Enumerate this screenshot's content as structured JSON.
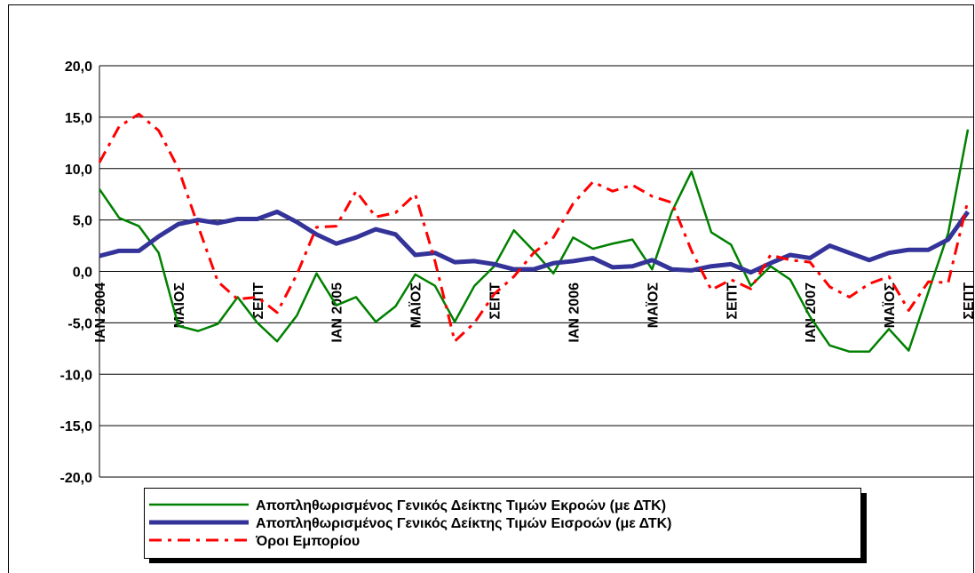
{
  "chart_data": {
    "type": "line",
    "categories": [
      "ΙΑΝ 2004",
      null,
      null,
      null,
      "ΜΑΪΟΣ",
      null,
      null,
      null,
      "ΣΕΠΤ",
      null,
      null,
      null,
      "ΙΑΝ 2005",
      null,
      null,
      null,
      "ΜΑΪΟΣ",
      null,
      null,
      null,
      "ΣΕΠΤ",
      null,
      null,
      null,
      "ΙΑΝ 2006",
      null,
      null,
      null,
      "ΜΑΪΟΣ",
      null,
      null,
      null,
      "ΣΕΠΤ",
      null,
      null,
      null,
      "ΙΑΝ 2007",
      null,
      null,
      null,
      "ΜΑΪΟΣ",
      null,
      null,
      null,
      "ΣΕΠΤ"
    ],
    "series": [
      {
        "name": "Αποπληθωρισμένος Γενικός Δείκτης Τιμών Εκροών (με ΔΤΚ)",
        "color": "#008000",
        "values": [
          8.0,
          5.2,
          4.4,
          1.8,
          -5.3,
          -5.8,
          -5.1,
          -2.5,
          -5.0,
          -6.8,
          -4.3,
          -0.2,
          -3.3,
          -2.5,
          -4.9,
          -3.4,
          -0.3,
          -1.4,
          -4.9,
          -1.4,
          0.5,
          4.0,
          2.0,
          -0.2,
          3.3,
          2.2,
          2.7,
          3.1,
          0.2,
          5.8,
          9.7,
          3.8,
          2.6,
          -1.4,
          0.5,
          -0.8,
          -4.4,
          -7.2,
          -7.8,
          -7.8,
          -5.6,
          -7.7,
          -2.0,
          3.7,
          13.8
        ]
      },
      {
        "name": "Αποπληθωρισμένος Γενικός Δείκτης Τιμών Εισροών (με ΔΤΚ)",
        "color": "#333399",
        "values": [
          1.5,
          2.0,
          2.0,
          3.4,
          4.6,
          5.0,
          4.7,
          5.1,
          5.1,
          5.8,
          4.8,
          3.6,
          2.7,
          3.3,
          4.1,
          3.6,
          1.6,
          1.8,
          0.9,
          1.0,
          0.7,
          0.2,
          0.2,
          0.8,
          1.0,
          1.3,
          0.4,
          0.5,
          1.1,
          0.2,
          0.1,
          0.5,
          0.7,
          -0.1,
          0.8,
          1.6,
          1.3,
          2.5,
          1.8,
          1.1,
          1.8,
          2.1,
          2.1,
          3.1,
          5.8
        ]
      },
      {
        "name": "Όροι Εμπορίου",
        "color": "#ff0000",
        "values": [
          10.6,
          14.1,
          15.3,
          13.7,
          10.0,
          4.4,
          -1.0,
          -2.7,
          -2.5,
          -4.0,
          -0.3,
          4.3,
          4.4,
          7.8,
          5.3,
          5.7,
          7.5,
          1.0,
          -6.8,
          -5.0,
          -2.2,
          -0.5,
          1.8,
          3.3,
          6.6,
          8.7,
          7.8,
          8.4,
          7.3,
          6.7,
          2.0,
          -1.8,
          -0.8,
          -1.7,
          1.6,
          1.1,
          0.9,
          -1.5,
          -2.5,
          -1.2,
          -0.5,
          -3.8,
          -1.0,
          -1.1,
          6.9
        ]
      }
    ],
    "ylim": [
      -20,
      20
    ],
    "yticks": [
      {
        "value": -20,
        "label": "-20,0"
      },
      {
        "value": -15,
        "label": "-15,0"
      },
      {
        "value": -10,
        "label": "-10,0"
      },
      {
        "value": -5,
        "label": "-5,0"
      },
      {
        "value": 0,
        "label": "0,0"
      },
      {
        "value": 5,
        "label": "5,0"
      },
      {
        "value": 10,
        "label": "10,0"
      },
      {
        "value": 15,
        "label": "15,0"
      },
      {
        "value": 20,
        "label": "20,0"
      }
    ],
    "grid": true
  }
}
